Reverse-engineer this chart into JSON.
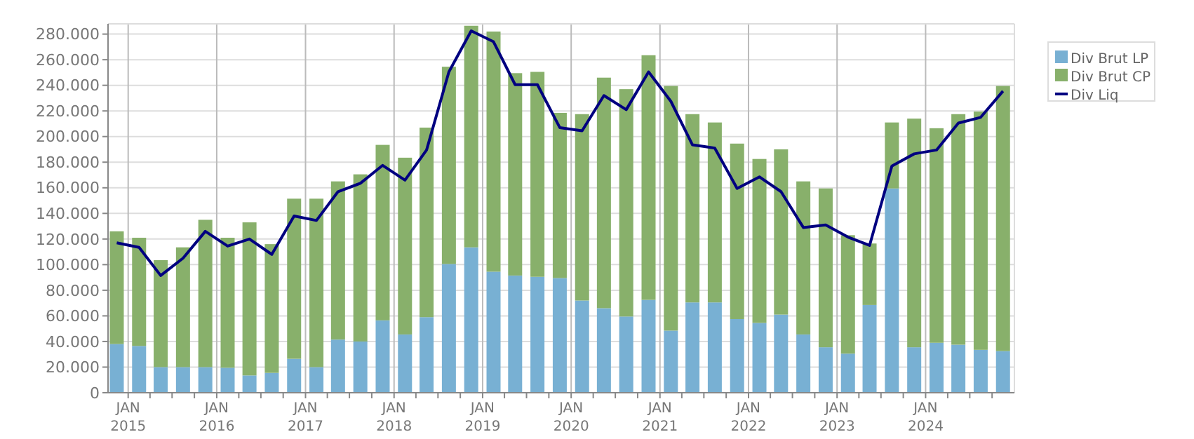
{
  "chart_data": {
    "type": "bar",
    "stacked": true,
    "grid": true,
    "legend": "top right",
    "x": [
      "2014-11-15",
      "2015-02-15",
      "2015-05-15",
      "2015-08-15",
      "2015-11-15",
      "2016-02-15",
      "2016-05-15",
      "2016-08-15",
      "2016-11-15",
      "2017-02-15",
      "2017-05-15",
      "2017-08-15",
      "2017-11-15",
      "2018-02-15",
      "2018-05-15",
      "2018-08-15",
      "2018-11-15",
      "2019-02-15",
      "2019-05-15",
      "2019-08-15",
      "2019-11-15",
      "2020-02-15",
      "2020-05-15",
      "2020-08-15",
      "2020-11-15",
      "2021-02-15",
      "2021-05-15",
      "2021-08-15",
      "2021-11-15",
      "2022-02-15",
      "2022-05-15",
      "2022-08-15",
      "2022-11-15",
      "2023-02-15",
      "2023-05-15",
      "2023-08-15",
      "2023-11-15",
      "2024-02-15",
      "2024-05-15",
      "2024-08-15",
      "2024-11-15"
    ],
    "xlim": [
      "2014-10-10",
      "2025-01-01"
    ],
    "xticks": [
      {
        "value": "2015-01-01",
        "label": "JAN\n2015"
      },
      {
        "value": "2015-04-01",
        "label": null
      },
      {
        "value": "2015-07-01",
        "label": null
      },
      {
        "value": "2015-10-01",
        "label": null
      },
      {
        "value": "2016-01-01",
        "label": "JAN\n2016"
      },
      {
        "value": "2016-04-01",
        "label": null
      },
      {
        "value": "2016-07-01",
        "label": null
      },
      {
        "value": "2016-10-01",
        "label": null
      },
      {
        "value": "2017-01-01",
        "label": "JAN\n2017"
      },
      {
        "value": "2017-04-01",
        "label": null
      },
      {
        "value": "2017-07-01",
        "label": null
      },
      {
        "value": "2017-10-01",
        "label": null
      },
      {
        "value": "2018-01-01",
        "label": "JAN\n2018"
      },
      {
        "value": "2018-04-01",
        "label": null
      },
      {
        "value": "2018-07-01",
        "label": null
      },
      {
        "value": "2018-10-01",
        "label": null
      },
      {
        "value": "2019-01-01",
        "label": "JAN\n2019"
      },
      {
        "value": "2019-04-01",
        "label": null
      },
      {
        "value": "2019-07-01",
        "label": null
      },
      {
        "value": "2019-10-01",
        "label": null
      },
      {
        "value": "2020-01-01",
        "label": "JAN\n2020"
      },
      {
        "value": "2020-04-01",
        "label": null
      },
      {
        "value": "2020-07-01",
        "label": null
      },
      {
        "value": "2020-10-01",
        "label": null
      },
      {
        "value": "2021-01-01",
        "label": "JAN\n2021"
      },
      {
        "value": "2021-04-01",
        "label": null
      },
      {
        "value": "2021-07-01",
        "label": null
      },
      {
        "value": "2021-10-01",
        "label": null
      },
      {
        "value": "2022-01-01",
        "label": "JAN\n2022"
      },
      {
        "value": "2022-04-01",
        "label": null
      },
      {
        "value": "2022-07-01",
        "label": null
      },
      {
        "value": "2022-10-01",
        "label": null
      },
      {
        "value": "2023-01-01",
        "label": "JAN\n2023"
      },
      {
        "value": "2023-04-01",
        "label": null
      },
      {
        "value": "2023-07-01",
        "label": null
      },
      {
        "value": "2023-10-01",
        "label": null
      },
      {
        "value": "2024-01-01",
        "label": "JAN\n2024"
      },
      {
        "value": "2024-04-01",
        "label": null
      },
      {
        "value": "2024-07-01",
        "label": null
      },
      {
        "value": "2024-10-01",
        "label": null
      }
    ],
    "ylim": [
      0,
      288000
    ],
    "yticks": [
      {
        "value": 0,
        "label": "0"
      },
      {
        "value": 20000,
        "label": "20.000"
      },
      {
        "value": 40000,
        "label": "40.000"
      },
      {
        "value": 60000,
        "label": "60.000"
      },
      {
        "value": 80000,
        "label": "80.000"
      },
      {
        "value": 100000,
        "label": "100.000"
      },
      {
        "value": 120000,
        "label": "120.000"
      },
      {
        "value": 140000,
        "label": "140.000"
      },
      {
        "value": 160000,
        "label": "160.000"
      },
      {
        "value": 180000,
        "label": "180.000"
      },
      {
        "value": 200000,
        "label": "200.000"
      },
      {
        "value": 220000,
        "label": "220.000"
      },
      {
        "value": 240000,
        "label": "240.000"
      },
      {
        "value": 260000,
        "label": "260.000"
      },
      {
        "value": 280000,
        "label": "280.000"
      }
    ],
    "series": [
      {
        "name": "Div Brut LP",
        "color": "#78b0d3",
        "values": [
          38000,
          36500,
          20000,
          20000,
          20000,
          19500,
          13500,
          15500,
          26500,
          20000,
          41500,
          40000,
          56500,
          45500,
          59000,
          100500,
          113500,
          94500,
          91500,
          90500,
          89500,
          72000,
          66000,
          59500,
          72500,
          48500,
          70500,
          70500,
          57500,
          54500,
          61000,
          45500,
          35500,
          30500,
          68500,
          159500,
          35500,
          39000,
          37500,
          33500,
          32500
        ]
      },
      {
        "name": "Div Brut CP",
        "color": "#88b06b",
        "values": [
          88000,
          84500,
          83500,
          93500,
          115000,
          101500,
          119500,
          100500,
          125000,
          131500,
          123500,
          130500,
          137000,
          138000,
          148000,
          154000,
          173000,
          187500,
          158000,
          160000,
          129000,
          145500,
          180000,
          177500,
          191000,
          191000,
          147000,
          140500,
          137000,
          128000,
          129000,
          119500,
          124000,
          92500,
          48000,
          51500,
          178500,
          167500,
          180000,
          186000,
          207000
        ]
      },
      {
        "name": "Div Liq",
        "type": "line",
        "color": "#000080",
        "values": [
          117000,
          113500,
          91500,
          105000,
          126000,
          114500,
          120000,
          108000,
          138000,
          134500,
          157000,
          163500,
          177500,
          166000,
          189500,
          250500,
          282500,
          274000,
          240500,
          240500,
          207000,
          204500,
          232000,
          221000,
          250500,
          227500,
          193500,
          191000,
          159500,
          168500,
          157000,
          129000,
          131000,
          121500,
          115000,
          177000,
          186500,
          189500,
          210500,
          215000,
          235500
        ]
      }
    ]
  }
}
